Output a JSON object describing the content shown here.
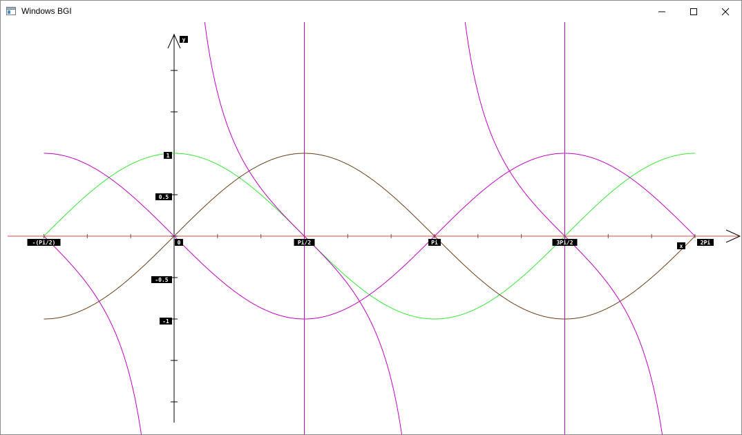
{
  "window": {
    "title": "Windows BGI",
    "icons": {
      "app": "window-app-icon",
      "minimize": "minimize-icon",
      "maximize": "maximize-icon",
      "close": "close-icon"
    }
  },
  "chart_data": {
    "type": "line",
    "xlabel": "x",
    "ylabel": "y",
    "xlim": [
      -1.5708,
      6.2832
    ],
    "ylim": [
      -2.2,
      2.2
    ],
    "grid": false,
    "x_tick_labels": [
      {
        "x": -1.5708,
        "label": "-(Pi/2)"
      },
      {
        "x": 0,
        "label": "0"
      },
      {
        "x": 1.5708,
        "label": "Pi/2"
      },
      {
        "x": 3.1416,
        "label": "Pi"
      },
      {
        "x": 4.7124,
        "label": "3Pi/2"
      },
      {
        "x": 6.2832,
        "label": "2Pi"
      }
    ],
    "y_tick_labels": [
      {
        "y": 1,
        "label": "1"
      },
      {
        "y": 0.5,
        "label": "0.5"
      },
      {
        "y": -0.5,
        "label": "-0.5"
      },
      {
        "y": -1,
        "label": "-1"
      }
    ],
    "series": [
      {
        "func": "cos",
        "color": "#33e633"
      },
      {
        "func": "sin",
        "color": "#6b3a12"
      },
      {
        "func": "neg_sin",
        "color": "#c000c0"
      },
      {
        "func": "cot",
        "color": "#c000c0"
      }
    ],
    "asymptotes": [
      {
        "x": 1.5708,
        "color": "#c000c0"
      },
      {
        "x": 4.7124,
        "color": "#c000c0"
      }
    ],
    "colors": {
      "x_axis": "#d84a3a",
      "y_axis": "#000000",
      "label_bg": "#000000",
      "label_text": "#ffffff"
    }
  }
}
